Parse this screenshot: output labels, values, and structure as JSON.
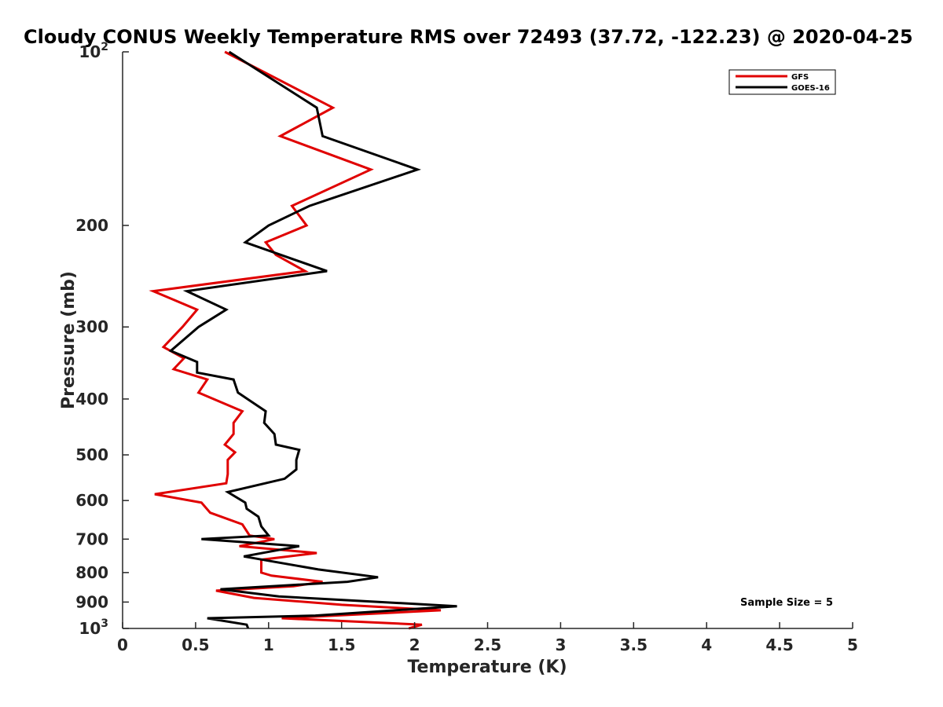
{
  "chart_data": {
    "type": "line",
    "title": "Cloudy CONUS Weekly Temperature RMS over 72493 (37.72, -122.23) @ 2020-04-25",
    "xlabel": "Temperature (K)",
    "ylabel": "Pressure (mb)",
    "xlim": [
      0,
      5
    ],
    "ylim": [
      100,
      1000
    ],
    "y_scale": "log",
    "y_reversed": true,
    "x_ticks": [
      "0",
      "0.5",
      "1",
      "1.5",
      "2",
      "2.5",
      "3",
      "3.5",
      "4",
      "4.5",
      "5"
    ],
    "y_ticks": [
      {
        "value": 100,
        "base": "10",
        "exp": "2"
      },
      {
        "value": 200,
        "label": "200"
      },
      {
        "value": 300,
        "label": "300"
      },
      {
        "value": 400,
        "label": "400"
      },
      {
        "value": 500,
        "label": "500"
      },
      {
        "value": 600,
        "label": "600"
      },
      {
        "value": 700,
        "label": "700"
      },
      {
        "value": 800,
        "label": "800"
      },
      {
        "value": 900,
        "label": "900"
      },
      {
        "value": 1000,
        "base": "10",
        "exp": "3"
      }
    ],
    "grid": false,
    "legend_position": "top-right",
    "annotation": "Sample Size = 5",
    "series": [
      {
        "name": "GFS",
        "color": "#e00000",
        "points": [
          [
            0.7,
            100
          ],
          [
            1.44,
            125
          ],
          [
            1.08,
            140
          ],
          [
            1.7,
            160
          ],
          [
            1.16,
            185
          ],
          [
            1.26,
            200
          ],
          [
            0.98,
            214
          ],
          [
            1.05,
            225
          ],
          [
            1.25,
            240
          ],
          [
            0.21,
            260
          ],
          [
            0.51,
            280
          ],
          [
            0.41,
            300
          ],
          [
            0.28,
            325
          ],
          [
            0.42,
            340
          ],
          [
            0.35,
            355
          ],
          [
            0.58,
            370
          ],
          [
            0.52,
            390
          ],
          [
            0.82,
            420
          ],
          [
            0.76,
            440
          ],
          [
            0.76,
            460
          ],
          [
            0.7,
            480
          ],
          [
            0.77,
            495
          ],
          [
            0.72,
            510
          ],
          [
            0.72,
            540
          ],
          [
            0.71,
            560
          ],
          [
            0.22,
            585
          ],
          [
            0.54,
            605
          ],
          [
            0.6,
            630
          ],
          [
            0.82,
            660
          ],
          [
            0.87,
            690
          ],
          [
            1.04,
            700
          ],
          [
            0.8,
            720
          ],
          [
            1.33,
            740
          ],
          [
            0.95,
            760
          ],
          [
            0.95,
            800
          ],
          [
            1.02,
            810
          ],
          [
            1.37,
            830
          ],
          [
            1.17,
            845
          ],
          [
            0.64,
            860
          ],
          [
            0.9,
            885
          ],
          [
            1.5,
            910
          ],
          [
            2.18,
            930
          ],
          [
            1.09,
            960
          ],
          [
            2.05,
            985
          ],
          [
            1.96,
            1000
          ]
        ]
      },
      {
        "name": "GOES-16",
        "color": "#000000",
        "points": [
          [
            0.73,
            100
          ],
          [
            1.33,
            125
          ],
          [
            1.37,
            140
          ],
          [
            2.02,
            160
          ],
          [
            1.28,
            185
          ],
          [
            1.0,
            200
          ],
          [
            0.84,
            214
          ],
          [
            1.4,
            240
          ],
          [
            0.44,
            260
          ],
          [
            0.71,
            280
          ],
          [
            0.52,
            300
          ],
          [
            0.33,
            330
          ],
          [
            0.51,
            345
          ],
          [
            0.51,
            360
          ],
          [
            0.76,
            370
          ],
          [
            0.79,
            390
          ],
          [
            0.98,
            420
          ],
          [
            0.97,
            440
          ],
          [
            1.04,
            460
          ],
          [
            1.05,
            480
          ],
          [
            1.21,
            490
          ],
          [
            1.19,
            510
          ],
          [
            1.19,
            530
          ],
          [
            1.11,
            550
          ],
          [
            0.72,
            580
          ],
          [
            0.84,
            605
          ],
          [
            0.85,
            620
          ],
          [
            0.93,
            640
          ],
          [
            0.95,
            665
          ],
          [
            1.0,
            690
          ],
          [
            0.54,
            700
          ],
          [
            1.21,
            720
          ],
          [
            0.83,
            750
          ],
          [
            1.34,
            790
          ],
          [
            1.75,
            815
          ],
          [
            1.54,
            830
          ],
          [
            0.67,
            855
          ],
          [
            1.07,
            880
          ],
          [
            2.29,
            915
          ],
          [
            1.32,
            950
          ],
          [
            0.58,
            960
          ],
          [
            0.85,
            985
          ],
          [
            0.86,
            1000
          ]
        ]
      }
    ]
  }
}
